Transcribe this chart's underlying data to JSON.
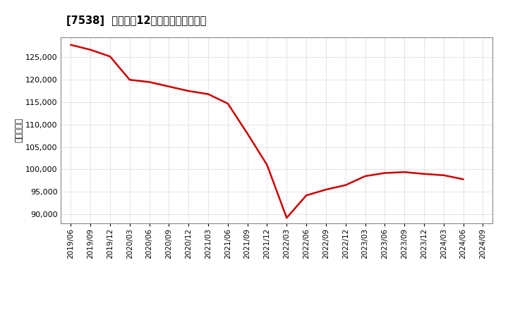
{
  "title": "[7538]  売上高の12か月移動合計の推移",
  "ylabel": "（百万円）",
  "line_color": "#cc0000",
  "background_color": "#ffffff",
  "plot_bg_color": "#ffffff",
  "grid_color": "#999999",
  "dates": [
    "2019/06",
    "2019/09",
    "2019/12",
    "2020/03",
    "2020/06",
    "2020/09",
    "2020/12",
    "2021/03",
    "2021/06",
    "2021/09",
    "2021/12",
    "2022/03",
    "2022/06",
    "2022/09",
    "2022/12",
    "2023/03",
    "2023/06",
    "2023/09",
    "2023/12",
    "2024/03",
    "2024/06",
    "2024/09"
  ],
  "values": [
    127800,
    126700,
    125200,
    120000,
    119500,
    118500,
    117500,
    116800,
    114700,
    108000,
    101000,
    89200,
    94200,
    95500,
    96500,
    98500,
    99200,
    99400,
    99000,
    98700,
    97800,
    null
  ],
  "yticks": [
    90000,
    95000,
    100000,
    105000,
    110000,
    115000,
    120000,
    125000
  ],
  "ylim": [
    88000,
    129500
  ],
  "xtick_labels": [
    "2019/06",
    "2019/09",
    "2019/12",
    "2020/03",
    "2020/06",
    "2020/09",
    "2020/12",
    "2021/03",
    "2021/06",
    "2021/09",
    "2021/12",
    "2022/03",
    "2022/06",
    "2022/09",
    "2022/12",
    "2023/03",
    "2023/06",
    "2023/09",
    "2023/12",
    "2024/03",
    "2024/06",
    "2024/09"
  ]
}
